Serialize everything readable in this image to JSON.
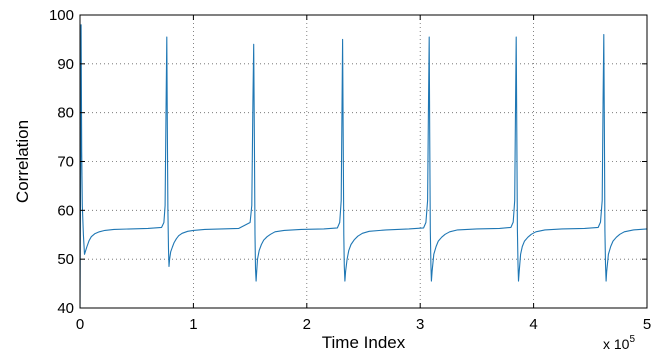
{
  "chart_data": {
    "type": "line",
    "title": "",
    "xlabel": "Time Index",
    "ylabel": "Correlation",
    "x_multiplier_text": "x 10",
    "x_multiplier_exponent": "5",
    "xlim": [
      0,
      500000
    ],
    "ylim": [
      40,
      100
    ],
    "xticks": [
      0,
      100000,
      200000,
      300000,
      400000,
      500000
    ],
    "xtick_labels": [
      "0",
      "1",
      "2",
      "3",
      "4",
      "5"
    ],
    "yticks": [
      40,
      50,
      60,
      70,
      80,
      90,
      100
    ],
    "ytick_labels": [
      "40",
      "50",
      "60",
      "70",
      "80",
      "90",
      "100"
    ],
    "grid": true,
    "legend": "none",
    "series": [
      {
        "color": "#1f77b4",
        "x": [
          0,
          500,
          1000,
          1500,
          2000,
          3000,
          4000,
          6000,
          8000,
          10000,
          13000,
          17000,
          22000,
          30000,
          45000,
          60000,
          72000,
          74000,
          75000,
          75800,
          76500,
          77000,
          77500,
          78000,
          78500,
          79000,
          80000,
          81500,
          83000,
          85000,
          87000,
          90000,
          95000,
          100000,
          110000,
          125000,
          140000,
          150000,
          151500,
          152500,
          153200,
          153800,
          154300,
          154800,
          155300,
          155800,
          156500,
          158000,
          160000,
          162000,
          165000,
          168000,
          172000,
          180000,
          195000,
          215000,
          227000,
          229000,
          230300,
          231000,
          231600,
          232100,
          232600,
          233100,
          233600,
          234200,
          235500,
          237000,
          239000,
          242000,
          245000,
          249000,
          255000,
          270000,
          290000,
          303000,
          305000,
          306500,
          307300,
          307900,
          308400,
          308900,
          309400,
          309900,
          310500,
          312000,
          314000,
          316000,
          319000,
          322000,
          326000,
          333000,
          350000,
          370000,
          380000,
          382000,
          383300,
          384100,
          384700,
          385200,
          385700,
          386200,
          386700,
          387300,
          388500,
          390000,
          392000,
          395000,
          398000,
          402000,
          410000,
          425000,
          445000,
          457000,
          459000,
          460500,
          461300,
          461900,
          462400,
          462900,
          463400,
          463900,
          464500,
          466000,
          468000,
          470000,
          473000,
          476000,
          480000,
          488000,
          500000
        ],
        "values": [
          40,
          68,
          98,
          72,
          61,
          55,
          51,
          52.5,
          53.8,
          54.6,
          55.2,
          55.6,
          55.9,
          56.1,
          56.2,
          56.3,
          56.5,
          57.5,
          61,
          80,
          95.5,
          78,
          60,
          52,
          48.5,
          50,
          51.5,
          52.5,
          53.4,
          54.2,
          54.8,
          55.3,
          55.7,
          55.9,
          56.1,
          56.2,
          56.3,
          57.5,
          61,
          82,
          94,
          74,
          55,
          48,
          45.5,
          47.5,
          50,
          51.8,
          53,
          53.9,
          54.6,
          55.1,
          55.6,
          55.9,
          56.1,
          56.2,
          56.4,
          57.5,
          62,
          81,
          95,
          75,
          55,
          48.5,
          45.5,
          47.5,
          50,
          51.8,
          53,
          54,
          54.7,
          55.3,
          55.7,
          56,
          56.2,
          56.4,
          57.5,
          62,
          82,
          95.5,
          76,
          56,
          49,
          45.5,
          47.5,
          51,
          52.6,
          53.7,
          54.5,
          55.1,
          55.6,
          56,
          56.2,
          56.3,
          56.5,
          57.6,
          62,
          83,
          95.5,
          76,
          56,
          49,
          45.5,
          47.5,
          51,
          52.6,
          53.7,
          54.5,
          55.1,
          55.6,
          56,
          56.2,
          56.3,
          56.5,
          57.6,
          62,
          83,
          96,
          76,
          56,
          49,
          45.5,
          47.5,
          51,
          52.6,
          53.7,
          54.5,
          55.1,
          55.6,
          56,
          56.2
        ]
      }
    ]
  }
}
